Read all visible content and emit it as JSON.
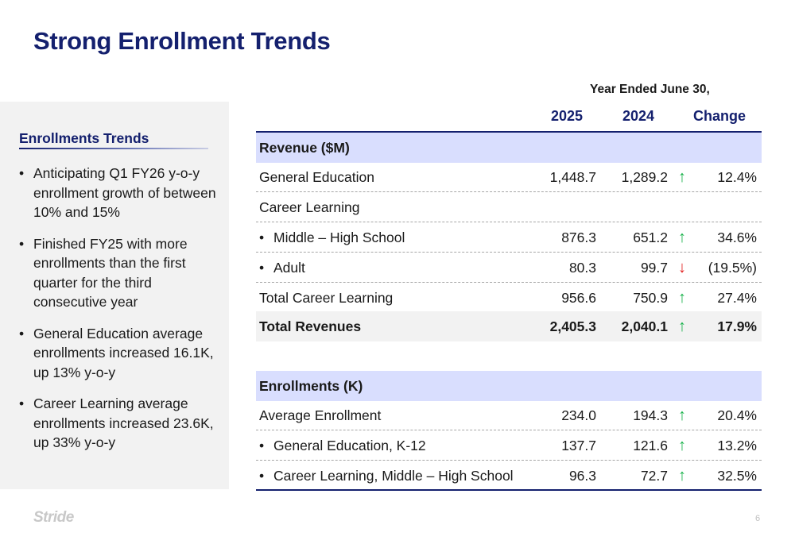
{
  "slide": {
    "title": "Strong Enrollment Trends",
    "page_number": "6",
    "logo_text": "Stride"
  },
  "sidebar": {
    "heading": "Enrollments Trends",
    "bullets": [
      "Anticipating Q1 FY26 y-o-y enrollment growth of between 10% and 15%",
      "Finished FY25 with more enrollments than the first quarter for the third consecutive year",
      "General Education average enrollments increased 16.1K, up 13% y-o-y",
      "Career Learning average enrollments increased 23.6K, up 33% y-o-y"
    ]
  },
  "table": {
    "period_label": "Year Ended June 30,",
    "columns": [
      "2025",
      "2024",
      "Change"
    ],
    "rows": [
      {
        "label": "Revenue ($M)",
        "type": "section"
      },
      {
        "label": "General Education",
        "v2025": "1,448.7",
        "v2024": "1,289.2",
        "arrow": "↑",
        "dir": "up",
        "change": "12.4%"
      },
      {
        "label": "Career Learning",
        "type": "plain"
      },
      {
        "label": "Middle – High School",
        "bullet": "•",
        "v2025": "876.3",
        "v2024": "651.2",
        "arrow": "↑",
        "dir": "up",
        "change": "34.6%"
      },
      {
        "label": "Adult",
        "bullet": "•",
        "v2025": "80.3",
        "v2024": "99.7",
        "arrow": "↓",
        "dir": "down",
        "change": "(19.5%)"
      },
      {
        "label": "Total Career Learning",
        "v2025": "956.6",
        "v2024": "750.9",
        "arrow": "↑",
        "dir": "up",
        "change": "27.4%"
      },
      {
        "label": "Total Revenues",
        "type": "total",
        "v2025": "2,405.3",
        "v2024": "2,040.1",
        "arrow": "↑",
        "dir": "up",
        "change": "17.9%"
      },
      {
        "label": "Enrollments (K)",
        "type": "section"
      },
      {
        "label": "Average Enrollment",
        "v2025": "234.0",
        "v2024": "194.3",
        "arrow": "↑",
        "dir": "up",
        "change": "20.4%"
      },
      {
        "label": "General Education, K-12",
        "bullet": "•",
        "v2025": "137.7",
        "v2024": "121.6",
        "arrow": "↑",
        "dir": "up",
        "change": "13.2%"
      },
      {
        "label": "Career Learning, Middle – High School",
        "bullet": "•",
        "v2025": "96.3",
        "v2024": "72.7",
        "arrow": "↑",
        "dir": "up",
        "change": "32.5%"
      }
    ]
  },
  "colors": {
    "title_navy": "#14206e",
    "section_band": "#d9defe",
    "arrow_up": "#18b24a",
    "arrow_down": "#e3201f"
  }
}
